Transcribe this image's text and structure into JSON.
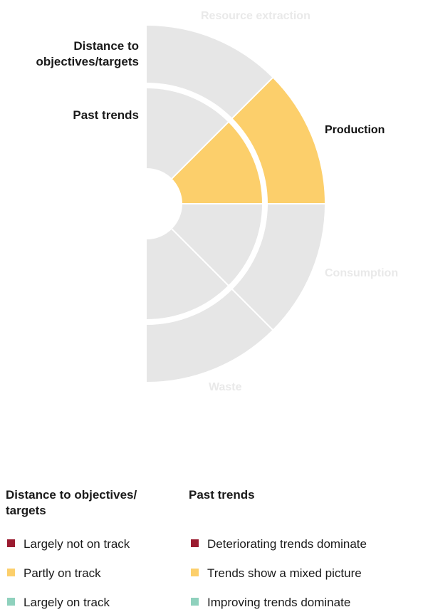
{
  "ring_labels": {
    "outer": "Distance to\nobjectives/targets",
    "inner": "Past trends"
  },
  "sectors": [
    {
      "id": "resource",
      "label": "Resource extraction",
      "outer_status": "none",
      "inner_status": "none",
      "label_emphasis": "faded"
    },
    {
      "id": "production",
      "label": "Production",
      "outer_status": "partly",
      "inner_status": "partly",
      "label_emphasis": "strong"
    },
    {
      "id": "consumption",
      "label": "Consumption",
      "outer_status": "none",
      "inner_status": "none",
      "label_emphasis": "faded"
    },
    {
      "id": "waste",
      "label": "Waste",
      "outer_status": "none",
      "inner_status": "none",
      "label_emphasis": "faded"
    }
  ],
  "colors": {
    "none": "#e6e6e6",
    "not_on_track": "#9b1b30",
    "partly": "#fccf6b",
    "on_track": "#8fd1bd",
    "divider": "#ffffff"
  },
  "legend": {
    "distance_title": "Distance to objectives/\ntargets",
    "trends_title": "Past trends",
    "distance_items": [
      {
        "label": "Largely not on track",
        "color": "#9b1b30"
      },
      {
        "label": "Partly on track",
        "color": "#fccf6b"
      },
      {
        "label": "Largely on track",
        "color": "#8fd1bd"
      }
    ],
    "trends_items": [
      {
        "label": "Deteriorating trends dominate",
        "color": "#9b1b30"
      },
      {
        "label": "Trends show a mixed picture",
        "color": "#fccf6b"
      },
      {
        "label": "Improving trends dominate",
        "color": "#8fd1bd"
      }
    ]
  }
}
